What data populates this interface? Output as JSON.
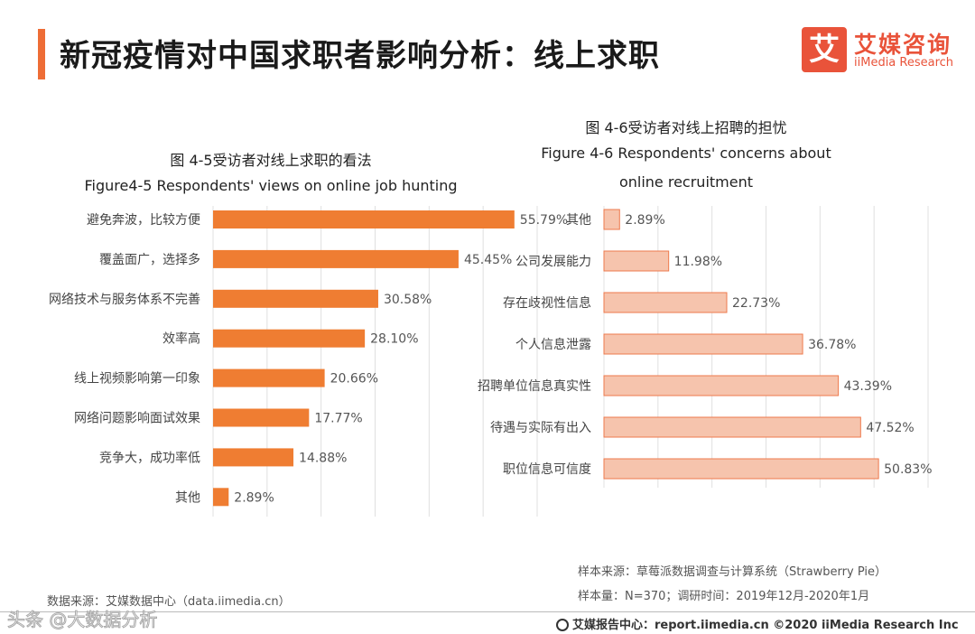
{
  "header": {
    "title": "新冠疫情对中国求职者影响分析：线上求职",
    "logo_mark": "艾",
    "logo_cn": "艾媒咨询",
    "logo_en": "iiMedia Research"
  },
  "colors": {
    "accent": "#ee6d36",
    "left_bar": "#ef7d32",
    "right_bar": "#f6c4ad",
    "right_bar_stroke": "#ee7a4d"
  },
  "chart_data": [
    {
      "type": "bar",
      "orientation": "horizontal",
      "title_cn": "图 4-5受访者对线上求职的看法",
      "title_en": "Figure4-5 Respondents' views on online job hunting",
      "categories": [
        "避免奔波，比较方便",
        "覆盖面广，选择多",
        "网络技术与服务体系不完善",
        "效率高",
        "线上视频影响第一印象",
        "网络问题影响面试效果",
        "竞争大，成功率低",
        "其他"
      ],
      "values": [
        55.79,
        45.45,
        30.58,
        28.1,
        20.66,
        17.77,
        14.88,
        2.89
      ],
      "value_labels": [
        "55.79%",
        "45.45%",
        "30.58%",
        "28.10%",
        "20.66%",
        "17.77%",
        "14.88%",
        "2.89%"
      ],
      "xlim": [
        0,
        60
      ],
      "unit": "%"
    },
    {
      "type": "bar",
      "orientation": "horizontal",
      "title_cn": "图 4-6受访者对线上招聘的担忧",
      "title_en_line1": "Figure 4-6  Respondents' concerns about",
      "title_en_line2": "online recruitment",
      "categories": [
        "其他",
        "公司发展能力",
        "存在歧视性信息",
        "个人信息泄露",
        "招聘单位信息真实性",
        "待遇与实际有出入",
        "职位信息可信度"
      ],
      "values": [
        2.89,
        11.98,
        22.73,
        36.78,
        43.39,
        47.52,
        50.83
      ],
      "value_labels": [
        "2.89%",
        "11.98%",
        "22.73%",
        "36.78%",
        "43.39%",
        "47.52%",
        "50.83%"
      ],
      "xlim": [
        0,
        60
      ],
      "unit": "%"
    }
  ],
  "footer": {
    "data_source": "数据来源：艾媒数据中心（data.iimedia.cn）",
    "sample_source": "样本来源：草莓派数据调查与计算系统（Strawberry Pie）",
    "sample_size": "样本量：N=370；调研时间：2019年12月-2020年1月",
    "copyright": "艾媒报告中心：report.iimedia.cn  ©2020  iiMedia Research  Inc",
    "watermark": "头条 @大数据分析"
  }
}
